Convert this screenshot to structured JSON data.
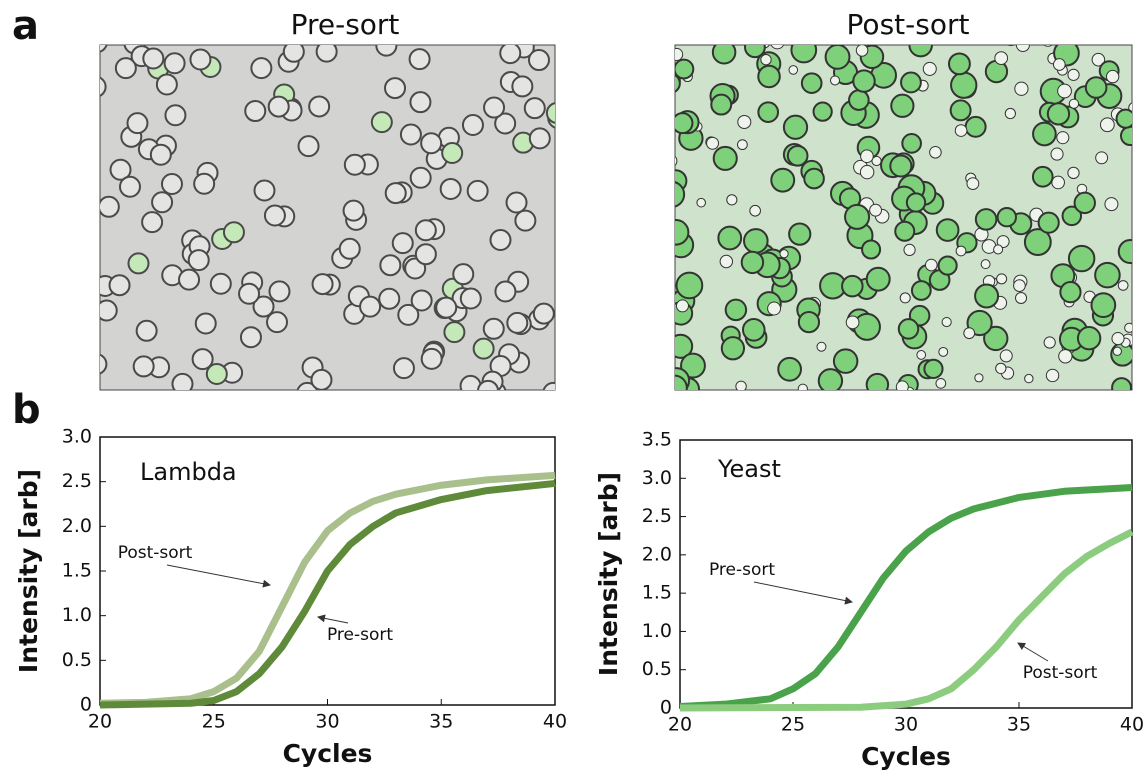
{
  "panels": {
    "a": "a",
    "b": "b"
  },
  "images": [
    {
      "title": "Pre-sort"
    },
    {
      "title": "Post-sort"
    }
  ],
  "chart_data": [
    {
      "type": "line",
      "inset_label": "Lambda",
      "x_label": "Cycles",
      "y_label": "Intensity [arb]",
      "annotations": [
        "Post-sort",
        "Pre-sort"
      ],
      "xlim": [
        20,
        40
      ],
      "xticks": [
        20,
        25,
        30,
        35,
        40
      ],
      "ylim": [
        0,
        3
      ],
      "yticks": [
        0,
        0.5,
        {
          "value": 1,
          "label": "1.0"
        },
        1.5,
        {
          "value": 2,
          "label": "2.0"
        },
        2.5,
        {
          "value": 3,
          "label": "3.0"
        }
      ],
      "series": [
        {
          "name": "Post-sort",
          "color": "#a9c08c",
          "x": [
            20,
            22,
            24,
            25,
            26,
            27,
            28,
            29,
            30,
            31,
            32,
            33,
            35,
            37,
            40
          ],
          "values": [
            0.02,
            0.03,
            0.07,
            0.15,
            0.3,
            0.6,
            1.1,
            1.6,
            1.95,
            2.15,
            2.28,
            2.36,
            2.46,
            2.52,
            2.57
          ]
        },
        {
          "name": "Pre-sort",
          "color": "#5f8a3a",
          "x": [
            20,
            22,
            24,
            25,
            26,
            27,
            28,
            29,
            30,
            31,
            32,
            33,
            35,
            37,
            40
          ],
          "values": [
            0,
            0.01,
            0.02,
            0.05,
            0.15,
            0.35,
            0.65,
            1.05,
            1.5,
            1.8,
            2.0,
            2.15,
            2.3,
            2.4,
            2.48
          ]
        }
      ]
    },
    {
      "type": "line",
      "inset_label": "Yeast",
      "x_label": "Cycles",
      "y_label": "Intensity [arb]",
      "annotations": [
        "Pre-sort",
        "Post-sort"
      ],
      "xlim": [
        20,
        40
      ],
      "xticks": [
        20,
        25,
        30,
        35,
        40
      ],
      "ylim": [
        0,
        3.5
      ],
      "yticks": [
        0,
        0.5,
        {
          "value": 1,
          "label": "1.0"
        },
        1.5,
        {
          "value": 2,
          "label": "2.0"
        },
        2.5,
        {
          "value": 3,
          "label": "3.0"
        },
        3.5
      ],
      "series": [
        {
          "name": "Pre-sort",
          "color": "#4aa34a",
          "x": [
            20,
            22,
            24,
            25,
            26,
            27,
            28,
            29,
            30,
            31,
            32,
            33,
            35,
            37,
            40
          ],
          "values": [
            0.02,
            0.05,
            0.12,
            0.25,
            0.45,
            0.8,
            1.25,
            1.7,
            2.05,
            2.3,
            2.48,
            2.6,
            2.75,
            2.83,
            2.88
          ]
        },
        {
          "name": "Post-sort",
          "color": "#8ccc7f",
          "x": [
            20,
            28,
            30,
            31,
            32,
            33,
            34,
            35,
            36,
            37,
            38,
            39,
            40
          ],
          "values": [
            0,
            0.01,
            0.05,
            0.12,
            0.25,
            0.5,
            0.8,
            1.15,
            1.45,
            1.75,
            1.98,
            2.15,
            2.3
          ]
        }
      ]
    }
  ]
}
